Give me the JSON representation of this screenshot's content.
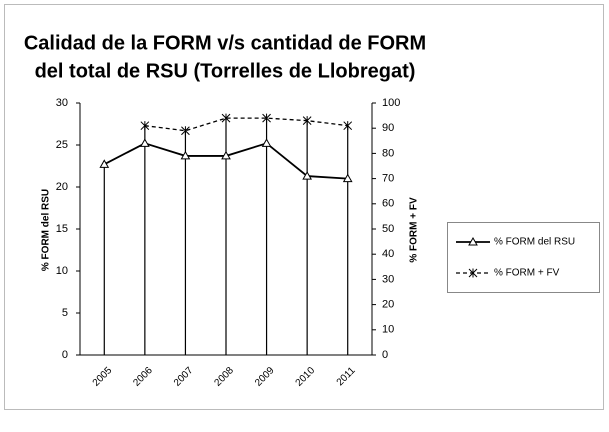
{
  "chart_data": {
    "type": "line",
    "title": [
      "Calidad de la FORM v/s cantidad de FORM",
      "del total de RSU (Torrelles de Llobregat)"
    ],
    "categories": [
      "2005",
      "2006",
      "2007",
      "2008",
      "2009",
      "2010",
      "2011"
    ],
    "y_label": "% FORM del RSU",
    "y2_label": "% FORM + FV",
    "ylim": [
      0,
      30
    ],
    "yticks": [
      0,
      5,
      10,
      15,
      20,
      25,
      30
    ],
    "y2lim": [
      0,
      100
    ],
    "y2ticks": [
      0,
      10,
      20,
      30,
      40,
      50,
      60,
      70,
      80,
      90,
      100
    ],
    "series": [
      {
        "name": "% FORM del RSU",
        "color": "#000000",
        "marker": "triangle",
        "dash": "solid",
        "values": [
          22.7,
          25.2,
          23.7,
          23.7,
          25.2,
          21.3,
          21.0
        ]
      },
      {
        "name": "% FORM + FV",
        "color": "#000000",
        "marker": "asterisk",
        "dash": "dashed",
        "axis": "y2",
        "values": [
          null,
          91,
          89,
          94,
          94,
          93,
          91
        ]
      }
    ],
    "legend": "right"
  }
}
